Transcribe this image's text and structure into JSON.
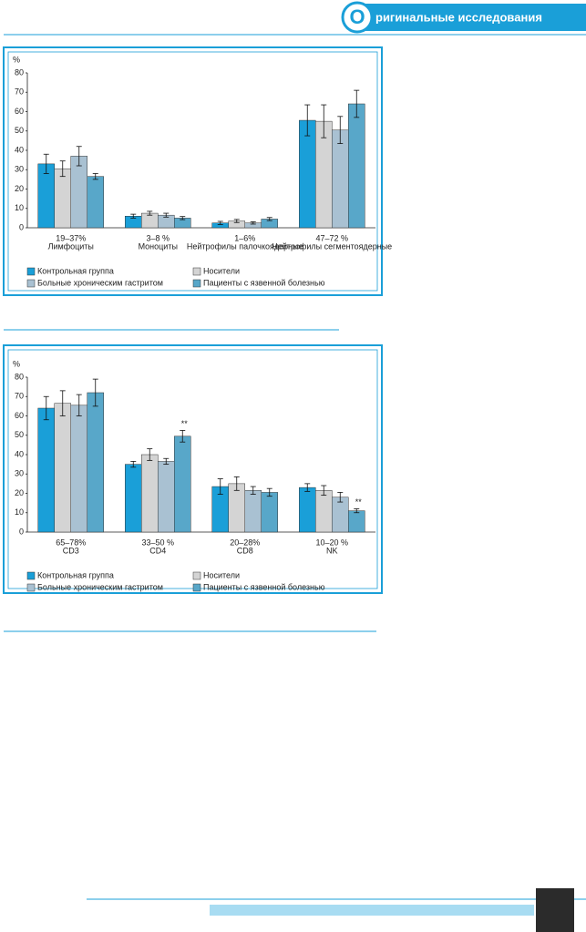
{
  "header": {
    "initial": "О",
    "rest": "ригинальные исследования"
  },
  "chart_data": [
    {
      "type": "bar",
      "ylabel": "%",
      "ylim": [
        0,
        80
      ],
      "yticks": [
        0,
        10,
        20,
        30,
        40,
        50,
        60,
        70,
        80
      ],
      "categories": [
        [
          "19–37%",
          "Лимфоциты"
        ],
        [
          "3–8 %",
          "Моноциты"
        ],
        [
          "1–6%",
          "Нейтрофилы палочкоядерные"
        ],
        [
          "47–72 %",
          "Нейтрофилы сегментоядерные"
        ]
      ],
      "series": [
        {
          "name": "Контрольная группа",
          "color": "#1a9fd8",
          "values": [
            33,
            6,
            2.5,
            55.5
          ],
          "errors": [
            5,
            1,
            0.8,
            8
          ]
        },
        {
          "name": "Носители",
          "color": "#d4d4d4",
          "values": [
            30.5,
            7.5,
            3.5,
            55
          ],
          "errors": [
            4,
            1,
            0.8,
            8.5
          ]
        },
        {
          "name": "Больные хроническим гастритом",
          "color": "#a9c1d2",
          "values": [
            37,
            6.5,
            2.5,
            50.5
          ],
          "errors": [
            5,
            1,
            0.6,
            7
          ]
        },
        {
          "name": "Пациенты с язвенной болезнью",
          "color": "#58a7c9",
          "values": [
            26.5,
            5,
            4.5,
            64
          ],
          "errors": [
            1.5,
            0.8,
            0.8,
            7
          ]
        }
      ]
    },
    {
      "type": "bar",
      "ylabel": "%",
      "ylim": [
        0,
        80
      ],
      "yticks": [
        0,
        10,
        20,
        30,
        40,
        50,
        60,
        70,
        80
      ],
      "categories": [
        [
          "65–78%",
          "CD3"
        ],
        [
          "33–50 %",
          "CD4"
        ],
        [
          "20–28%",
          "CD8"
        ],
        [
          "10–20 %",
          "NK"
        ]
      ],
      "series": [
        {
          "name": "Контрольная группа",
          "color": "#1a9fd8",
          "values": [
            64,
            35,
            23.5,
            23
          ],
          "errors": [
            6,
            1.5,
            4,
            2
          ]
        },
        {
          "name": "Носители",
          "color": "#d4d4d4",
          "values": [
            66.5,
            40,
            25,
            21.5
          ],
          "errors": [
            6.5,
            3,
            3.5,
            2.5
          ]
        },
        {
          "name": "Больные хроническим гастритом",
          "color": "#a9c1d2",
          "values": [
            65.5,
            36.5,
            21.5,
            18
          ],
          "errors": [
            5.5,
            1.5,
            2,
            2.5
          ]
        },
        {
          "name": "Пациенты с язвенной болезнью",
          "color": "#58a7c9",
          "values": [
            72,
            49.5,
            20.5,
            11
          ],
          "errors": [
            7,
            3,
            2,
            1
          ],
          "significance": [
            null,
            "**",
            null,
            "**"
          ]
        }
      ]
    }
  ]
}
